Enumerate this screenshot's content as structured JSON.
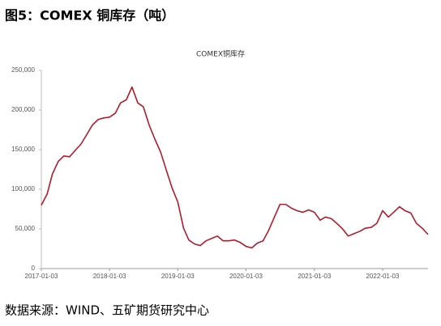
{
  "figure_title": "图5：COMEX 铜库存（吨）",
  "source": "数据来源：WIND、五矿期货研究中心",
  "chart_data": {
    "type": "line",
    "title": "COMEX铜库存",
    "color": "#b01c2e",
    "x": [
      "2017-01-03",
      "2017-02-03",
      "2017-03-03",
      "2017-04-03",
      "2017-05-03",
      "2017-06-03",
      "2017-07-03",
      "2017-08-03",
      "2017-09-03",
      "2017-10-03",
      "2017-11-03",
      "2017-12-03",
      "2018-01-03",
      "2018-02-03",
      "2018-03-03",
      "2018-04-03",
      "2018-05-03",
      "2018-06-03",
      "2018-07-03",
      "2018-08-03",
      "2018-09-03",
      "2018-10-03",
      "2018-11-03",
      "2018-12-03",
      "2019-01-03",
      "2019-02-03",
      "2019-03-03",
      "2019-04-03",
      "2019-05-03",
      "2019-06-03",
      "2019-07-03",
      "2019-08-03",
      "2019-09-03",
      "2019-10-03",
      "2019-11-03",
      "2019-12-03",
      "2020-01-03",
      "2020-02-03",
      "2020-03-03",
      "2020-04-03",
      "2020-05-03",
      "2020-06-03",
      "2020-07-03",
      "2020-08-03",
      "2020-09-03",
      "2020-10-03",
      "2020-11-03",
      "2020-12-03",
      "2021-01-03",
      "2021-02-03",
      "2021-03-03",
      "2021-04-03",
      "2021-05-03",
      "2021-06-03",
      "2021-07-03",
      "2021-08-03",
      "2021-09-03",
      "2021-10-03",
      "2021-11-03",
      "2021-12-03",
      "2022-01-03",
      "2022-02-03",
      "2022-03-03",
      "2022-04-03",
      "2022-05-03",
      "2022-06-03",
      "2022-07-03",
      "2022-08-03",
      "2022-09-03"
    ],
    "values": [
      80000,
      94000,
      119000,
      135000,
      142000,
      141000,
      149000,
      157000,
      169000,
      181000,
      188000,
      190000,
      191000,
      196000,
      209000,
      213000,
      229000,
      209000,
      204000,
      181000,
      163000,
      147000,
      124000,
      102000,
      84000,
      51000,
      36000,
      31000,
      29000,
      35000,
      38000,
      41000,
      35000,
      35000,
      36000,
      33000,
      28000,
      26000,
      32000,
      35000,
      48000,
      65000,
      81000,
      81000,
      76000,
      73000,
      71000,
      74000,
      71000,
      61000,
      65000,
      63000,
      57000,
      50000,
      41000,
      44000,
      47000,
      51000,
      52000,
      57000,
      73000,
      65000,
      71000,
      78000,
      73000,
      70000,
      57000,
      51000,
      43000
    ],
    "xlim": [
      "2017-01-03",
      "2022-09-03"
    ],
    "xticks": [
      "2017-01-03",
      "2018-01-03",
      "2019-01-03",
      "2020-01-03",
      "2021-01-03",
      "2022-01-03"
    ],
    "ylim": [
      0,
      250000
    ],
    "yticks": [
      0,
      {
        "value": 50000,
        "label": "50,000"
      },
      {
        "value": 100000,
        "label": "100,000"
      },
      {
        "value": 150000,
        "label": "150,000"
      },
      {
        "value": 200000,
        "label": "200,000"
      },
      {
        "value": 250000,
        "label": "250,000"
      }
    ],
    "grid": false
  }
}
